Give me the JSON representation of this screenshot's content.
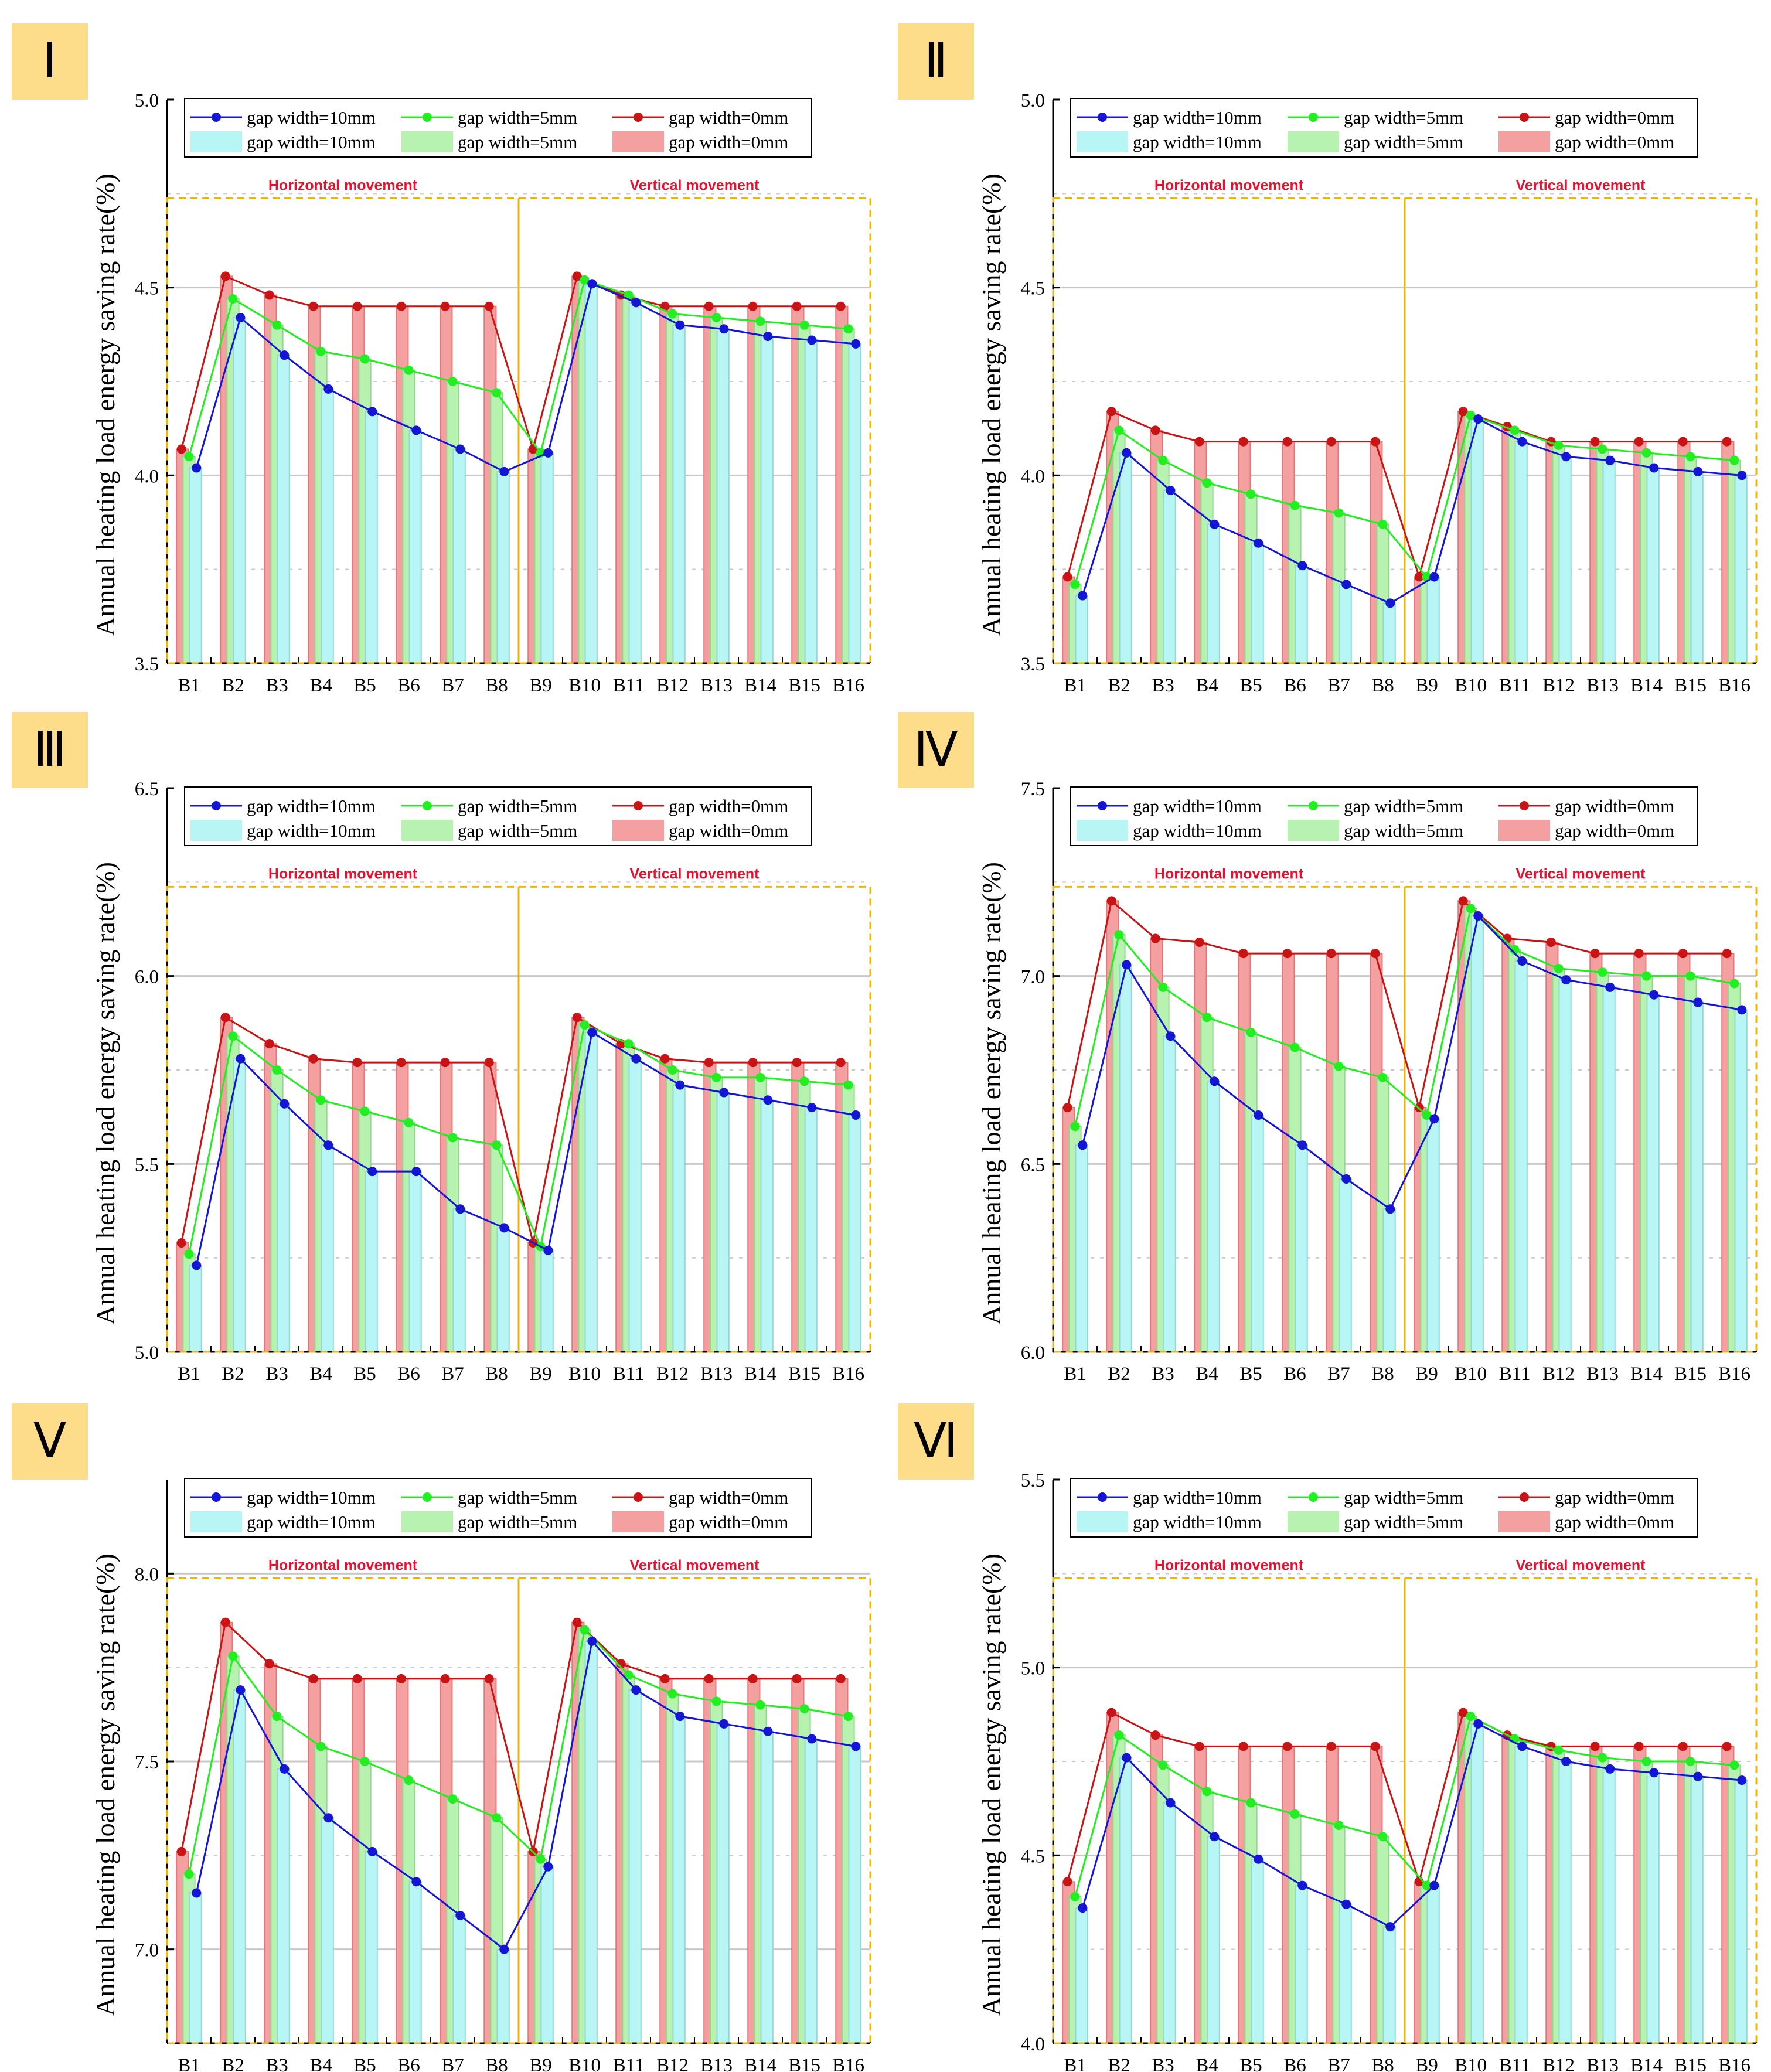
{
  "legend": {
    "line_labels": [
      "gap width=10mm",
      "gap width=5mm",
      "gap width=0mm"
    ],
    "bar_labels": [
      "gap width=10mm",
      "gap width=5mm",
      "gap width=0mm"
    ]
  },
  "colors": {
    "line10": "#1515d6",
    "line5": "#22ee22",
    "line0": "#c81414",
    "bar10": "#b8f6f6",
    "bar5": "#b8f2b0",
    "bar0": "#f5a0a0",
    "region_label": "#e8102e",
    "region_box": "#f2b400",
    "badge": "#fddc8a"
  },
  "region_labels": {
    "horizontal": "Horizontal movement",
    "vertical": "Vertical movement"
  },
  "chart_data": [
    {
      "panel": "Ⅰ",
      "type": "bar+line",
      "ylabel": "Annual heating load energy saving rate(%)",
      "ylim": [
        3.5,
        5.0
      ],
      "yticks": [
        3.5,
        4.0,
        4.5,
        5.0
      ],
      "ytick_labels": [
        "3.5",
        "4.0",
        "4.5",
        "5.0"
      ],
      "categories": [
        "B1",
        "B2",
        "B3",
        "B4",
        "B5",
        "B6",
        "B7",
        "B8",
        "B9",
        "B10",
        "B11",
        "B12",
        "B13",
        "B14",
        "B15",
        "B16"
      ],
      "series": [
        {
          "name": "gap width=10mm",
          "values": [
            4.02,
            4.42,
            4.32,
            4.23,
            4.17,
            4.12,
            4.07,
            4.01,
            4.06,
            4.51,
            4.46,
            4.4,
            4.39,
            4.37,
            4.36,
            4.35
          ]
        },
        {
          "name": "gap width=5mm",
          "values": [
            4.05,
            4.47,
            4.4,
            4.33,
            4.31,
            4.28,
            4.25,
            4.22,
            4.06,
            4.52,
            4.48,
            4.43,
            4.42,
            4.41,
            4.4,
            4.39
          ]
        },
        {
          "name": "gap width=0mm",
          "values": [
            4.07,
            4.53,
            4.48,
            4.45,
            4.45,
            4.45,
            4.45,
            4.45,
            4.07,
            4.53,
            4.48,
            4.45,
            4.45,
            4.45,
            4.45,
            4.45
          ]
        }
      ]
    },
    {
      "panel": "Ⅱ",
      "type": "bar+line",
      "ylabel": "Annual heating load energy saving rate(%)",
      "ylim": [
        3.5,
        5.0
      ],
      "yticks": [
        3.5,
        4.0,
        4.5,
        5.0
      ],
      "ytick_labels": [
        "3.5",
        "4.0",
        "4.5",
        "5.0"
      ],
      "categories": [
        "B1",
        "B2",
        "B3",
        "B4",
        "B5",
        "B6",
        "B7",
        "B8",
        "B9",
        "B10",
        "B11",
        "B12",
        "B13",
        "B14",
        "B15",
        "B16"
      ],
      "series": [
        {
          "name": "gap width=10mm",
          "values": [
            3.68,
            4.06,
            3.96,
            3.87,
            3.82,
            3.76,
            3.71,
            3.66,
            3.73,
            4.15,
            4.09,
            4.05,
            4.04,
            4.02,
            4.01,
            4.0
          ]
        },
        {
          "name": "gap width=5mm",
          "values": [
            3.71,
            4.12,
            4.04,
            3.98,
            3.95,
            3.92,
            3.9,
            3.87,
            3.73,
            4.16,
            4.12,
            4.08,
            4.07,
            4.06,
            4.05,
            4.04
          ]
        },
        {
          "name": "gap width=0mm",
          "values": [
            3.73,
            4.17,
            4.12,
            4.09,
            4.09,
            4.09,
            4.09,
            4.09,
            3.73,
            4.17,
            4.13,
            4.09,
            4.09,
            4.09,
            4.09,
            4.09
          ]
        }
      ]
    },
    {
      "panel": "Ⅲ",
      "type": "bar+line",
      "ylabel": "Annual heating load energy saving rate(%)",
      "ylim": [
        5.0,
        6.5
      ],
      "yticks": [
        5.0,
        5.5,
        6.0,
        6.5
      ],
      "ytick_labels": [
        "5.0",
        "5.5",
        "6.0",
        "6.5"
      ],
      "categories": [
        "B1",
        "B2",
        "B3",
        "B4",
        "B5",
        "B6",
        "B7",
        "B8",
        "B9",
        "B10",
        "B11",
        "B12",
        "B13",
        "B14",
        "B15",
        "B16"
      ],
      "series": [
        {
          "name": "gap width=10mm",
          "values": [
            5.23,
            5.78,
            5.66,
            5.55,
            5.48,
            5.48,
            5.38,
            5.33,
            5.27,
            5.85,
            5.78,
            5.71,
            5.69,
            5.67,
            5.65,
            5.63
          ]
        },
        {
          "name": "gap width=5mm",
          "values": [
            5.26,
            5.84,
            5.75,
            5.67,
            5.64,
            5.61,
            5.57,
            5.55,
            5.28,
            5.87,
            5.82,
            5.75,
            5.73,
            5.73,
            5.72,
            5.71
          ]
        },
        {
          "name": "gap width=0mm",
          "values": [
            5.29,
            5.89,
            5.82,
            5.78,
            5.77,
            5.77,
            5.77,
            5.77,
            5.29,
            5.89,
            5.82,
            5.78,
            5.77,
            5.77,
            5.77,
            5.77
          ]
        }
      ]
    },
    {
      "panel": "Ⅳ",
      "type": "bar+line",
      "ylabel": "Annual heating load energy saving rate(%)",
      "ylim": [
        6.0,
        7.5
      ],
      "yticks": [
        6.0,
        6.5,
        7.0,
        7.5
      ],
      "ytick_labels": [
        "6.0",
        "6.5",
        "7.0",
        "7.5"
      ],
      "categories": [
        "B1",
        "B2",
        "B3",
        "B4",
        "B5",
        "B6",
        "B7",
        "B8",
        "B9",
        "B10",
        "B11",
        "B12",
        "B13",
        "B14",
        "B15",
        "B16"
      ],
      "series": [
        {
          "name": "gap width=10mm",
          "values": [
            6.55,
            7.03,
            6.84,
            6.72,
            6.63,
            6.55,
            6.46,
            6.38,
            6.62,
            7.16,
            7.04,
            6.99,
            6.97,
            6.95,
            6.93,
            6.91
          ]
        },
        {
          "name": "gap width=5mm",
          "values": [
            6.6,
            7.11,
            6.97,
            6.89,
            6.85,
            6.81,
            6.76,
            6.73,
            6.63,
            7.18,
            7.07,
            7.02,
            7.01,
            7.0,
            7.0,
            6.98
          ]
        },
        {
          "name": "gap width=0mm",
          "values": [
            6.65,
            7.2,
            7.1,
            7.09,
            7.06,
            7.06,
            7.06,
            7.06,
            6.65,
            7.2,
            7.1,
            7.09,
            7.06,
            7.06,
            7.06,
            7.06
          ]
        }
      ]
    },
    {
      "panel": "Ⅴ",
      "type": "bar+line",
      "ylabel": "Annual heating load energy saving rate(%)",
      "ylim": [
        6.75,
        8.25
      ],
      "yticks": [
        7.0,
        7.5,
        8.0
      ],
      "ytick_labels": [
        "7.0",
        "7.5",
        "8.0"
      ],
      "categories": [
        "B1",
        "B2",
        "B3",
        "B4",
        "B5",
        "B6",
        "B7",
        "B8",
        "B9",
        "B10",
        "B11",
        "B12",
        "B13",
        "B14",
        "B15",
        "B16"
      ],
      "series": [
        {
          "name": "gap width=10mm",
          "values": [
            7.15,
            7.69,
            7.48,
            7.35,
            7.26,
            7.18,
            7.09,
            7.0,
            7.22,
            7.82,
            7.69,
            7.62,
            7.6,
            7.58,
            7.56,
            7.54
          ]
        },
        {
          "name": "gap width=5mm",
          "values": [
            7.2,
            7.78,
            7.62,
            7.54,
            7.5,
            7.45,
            7.4,
            7.35,
            7.24,
            7.85,
            7.73,
            7.68,
            7.66,
            7.65,
            7.64,
            7.62
          ]
        },
        {
          "name": "gap width=0mm",
          "values": [
            7.26,
            7.87,
            7.76,
            7.72,
            7.72,
            7.72,
            7.72,
            7.72,
            7.26,
            7.87,
            7.76,
            7.72,
            7.72,
            7.72,
            7.72,
            7.72
          ]
        }
      ]
    },
    {
      "panel": "Ⅵ",
      "type": "bar+line",
      "ylabel": "Annual heating load energy saving rate(%)",
      "ylim": [
        4.0,
        5.5
      ],
      "yticks": [
        4.0,
        4.5,
        5.0,
        5.5
      ],
      "ytick_labels": [
        "4.0",
        "4.5",
        "5.0",
        "5.5"
      ],
      "categories": [
        "B1",
        "B2",
        "B3",
        "B4",
        "B5",
        "B6",
        "B7",
        "B8",
        "B9",
        "B10",
        "B11",
        "B12",
        "B13",
        "B14",
        "B15",
        "B16"
      ],
      "series": [
        {
          "name": "gap width=10mm",
          "values": [
            4.36,
            4.76,
            4.64,
            4.55,
            4.49,
            4.42,
            4.37,
            4.31,
            4.42,
            4.85,
            4.79,
            4.75,
            4.73,
            4.72,
            4.71,
            4.7
          ]
        },
        {
          "name": "gap width=5mm",
          "values": [
            4.39,
            4.82,
            4.74,
            4.67,
            4.64,
            4.61,
            4.58,
            4.55,
            4.42,
            4.87,
            4.81,
            4.78,
            4.76,
            4.75,
            4.75,
            4.74
          ]
        },
        {
          "name": "gap width=0mm",
          "values": [
            4.43,
            4.88,
            4.82,
            4.79,
            4.79,
            4.79,
            4.79,
            4.79,
            4.43,
            4.88,
            4.82,
            4.79,
            4.79,
            4.79,
            4.79,
            4.79
          ]
        }
      ]
    }
  ]
}
